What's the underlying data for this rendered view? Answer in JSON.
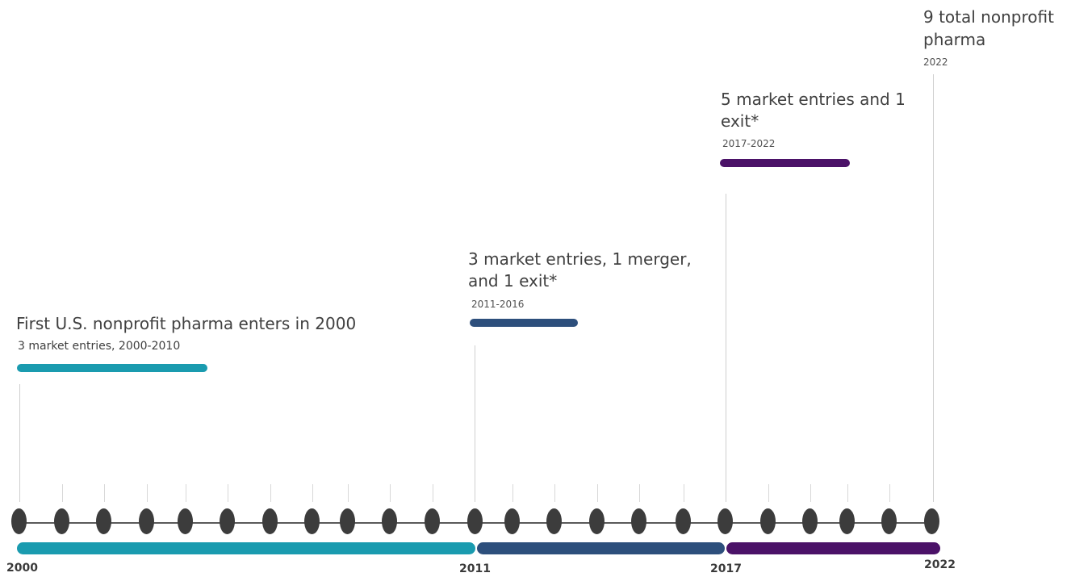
{
  "colors": {
    "phase1": "#1a9baf",
    "phase2": "#2d4f7c",
    "phase3": "#4b1268",
    "dot": "#3c3c3c"
  },
  "phases": [
    {
      "title": "First U.S. nonprofit pharma enters in 2000",
      "subtitle": "3 market entries, 2000-2010",
      "color": "#1a9baf"
    },
    {
      "title_line1": "3 market entries, 1 merger,",
      "title_line2": "and 1 exit*",
      "subtitle": "2011-2016",
      "color": "#2d4f7c"
    },
    {
      "title_line1": "5 market entries and 1",
      "title_line2": "exit*",
      "subtitle": "2017-2022",
      "color": "#4b1268"
    }
  ],
  "summary": {
    "title_line1": "9 total nonprofit",
    "title_line2": "pharma",
    "year": "2022"
  },
  "axis": {
    "labels": [
      "2000",
      "2011",
      "2017",
      "2022"
    ]
  }
}
